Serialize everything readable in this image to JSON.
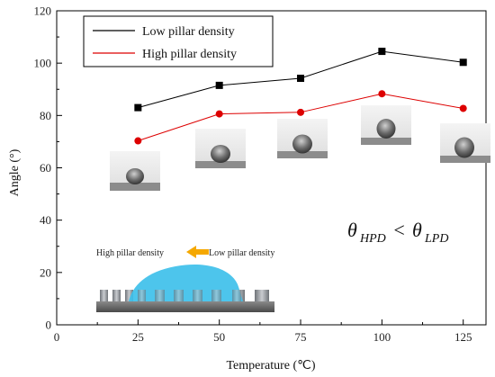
{
  "chart_data": {
    "type": "line",
    "title": "",
    "xlabel": "Temperature (℃)",
    "ylabel": "Angle (°)",
    "xlim": [
      0,
      132
    ],
    "ylim": [
      0,
      120
    ],
    "x_ticks": [
      "0",
      "25",
      "50",
      "75",
      "100",
      "125"
    ],
    "y_ticks": [
      "0",
      "20",
      "40",
      "60",
      "80",
      "100",
      "120"
    ],
    "x": [
      25,
      50,
      75,
      100,
      125
    ],
    "series": [
      {
        "name": "Low pillar density",
        "values": [
          83,
          91.5,
          94.2,
          104.5,
          100.3
        ],
        "color": "#000000",
        "marker": "square"
      },
      {
        "name": "High pillar density",
        "values": [
          70.3,
          80.6,
          81.2,
          88.3,
          82.7
        ],
        "color": "#dd0000",
        "marker": "circle"
      }
    ],
    "legend": "top-left",
    "grid": false
  },
  "annotation": {
    "formula_lhs_symbol": "θ",
    "formula_lhs_sub": "HPD",
    "formula_op": "<",
    "formula_rhs_symbol": "θ",
    "formula_rhs_sub": "LPD"
  },
  "schematic": {
    "label_left": "High pillar density",
    "label_right": "Low pillar density",
    "arrow_color": "#f5a800",
    "droplet_color": "#3ec0ea"
  },
  "photos": [
    {
      "name": "droplet-photo-25",
      "temperature": "25"
    },
    {
      "name": "droplet-photo-50",
      "temperature": "50"
    },
    {
      "name": "droplet-photo-75",
      "temperature": "75"
    },
    {
      "name": "droplet-photo-100",
      "temperature": "100"
    },
    {
      "name": "droplet-photo-125",
      "temperature": "125"
    }
  ]
}
